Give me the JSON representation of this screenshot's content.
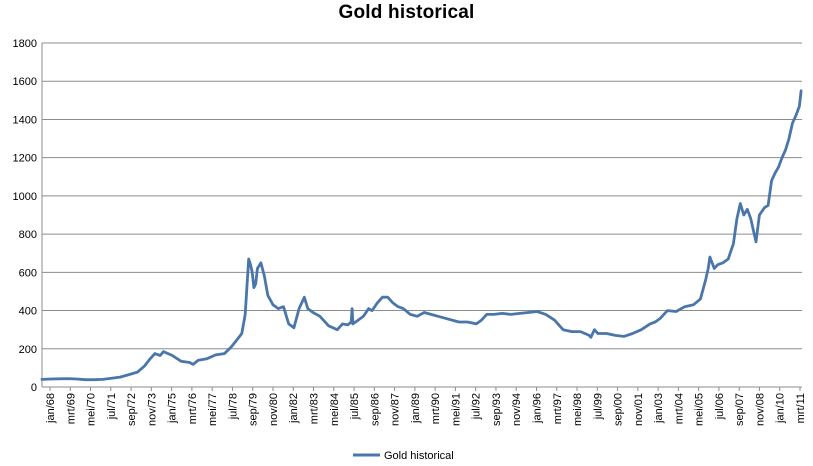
{
  "chart_data": {
    "type": "line",
    "title": "Gold historical",
    "xlabel": "",
    "ylabel": "",
    "ylim": [
      0,
      1800
    ],
    "yticks": [
      0,
      200,
      400,
      600,
      800,
      1000,
      1200,
      1400,
      1600,
      1800
    ],
    "grid": true,
    "legend_position": "bottom",
    "x_tick_labels": [
      "jan/68",
      "mrt/69",
      "mei/70",
      "jul/71",
      "sep/72",
      "nov/73",
      "jan/75",
      "mrt/76",
      "mei/77",
      "jul/78",
      "sep/79",
      "nov/80",
      "jan/82",
      "mrt/83",
      "mei/84",
      "jul/85",
      "sep/86",
      "nov/87",
      "jan/89",
      "mrt/90",
      "mei/91",
      "jul/92",
      "sep/93",
      "nov/94",
      "jan/96",
      "mrt/97",
      "mei/98",
      "jul/99",
      "sep/00",
      "nov/01",
      "jan/03",
      "mrt/04",
      "mei/05",
      "jul/06",
      "sep/07",
      "nov/08",
      "jan/10",
      "mrt/11"
    ],
    "series": [
      {
        "name": "Gold historical",
        "color": "#4a76ab",
        "x": [
          1968.0,
          1968.5,
          1969.0,
          1969.5,
          1970.0,
          1970.5,
          1971.0,
          1971.5,
          1972.0,
          1972.5,
          1973.0,
          1973.5,
          1973.9,
          1974.2,
          1974.5,
          1974.8,
          1975.0,
          1975.5,
          1976.0,
          1976.5,
          1976.7,
          1977.0,
          1977.5,
          1978.0,
          1978.5,
          1978.9,
          1979.2,
          1979.5,
          1979.7,
          1979.8,
          1979.9,
          1980.0,
          1980.1,
          1980.2,
          1980.3,
          1980.4,
          1980.6,
          1980.8,
          1981.0,
          1981.3,
          1981.6,
          1981.9,
          1982.2,
          1982.5,
          1982.8,
          1983.0,
          1983.1,
          1983.3,
          1983.6,
          1984.0,
          1984.5,
          1985.0,
          1985.3,
          1985.6,
          1985.8,
          1985.85,
          1985.9,
          1986.2,
          1986.5,
          1986.8,
          1987.0,
          1987.3,
          1987.6,
          1987.9,
          1988.2,
          1988.5,
          1988.8,
          1989.2,
          1989.6,
          1990.0,
          1990.4,
          1990.8,
          1991.2,
          1991.6,
          1992.0,
          1992.5,
          1993.0,
          1993.3,
          1993.6,
          1994.0,
          1994.5,
          1995.0,
          1995.5,
          1996.0,
          1996.5,
          1997.0,
          1997.5,
          1998.0,
          1998.5,
          1999.0,
          1999.5,
          1999.6,
          1999.8,
          2000.0,
          2000.5,
          2001.0,
          2001.5,
          2002.0,
          2002.5,
          2003.0,
          2003.3,
          2003.6,
          2004.0,
          2004.5,
          2005.0,
          2005.5,
          2005.9,
          2006.2,
          2006.35,
          2006.45,
          2006.7,
          2006.9,
          2007.2,
          2007.5,
          2007.8,
          2008.0,
          2008.2,
          2008.4,
          2008.6,
          2008.8,
          2008.9,
          2009.1,
          2009.3,
          2009.6,
          2009.8,
          2010.0,
          2010.2,
          2010.4,
          2010.6,
          2010.8,
          2011.0,
          2011.2,
          2011.4,
          2011.6,
          2011.7
        ],
        "values": [
          40,
          42,
          43,
          44,
          42,
          38,
          38,
          40,
          46,
          52,
          65,
          78,
          110,
          145,
          175,
          165,
          185,
          165,
          135,
          128,
          118,
          140,
          148,
          168,
          175,
          210,
          245,
          280,
          380,
          530,
          670,
          640,
          600,
          520,
          540,
          620,
          650,
          580,
          480,
          430,
          410,
          420,
          330,
          310,
          410,
          450,
          470,
          410,
          390,
          370,
          320,
          300,
          330,
          325,
          340,
          410,
          330,
          350,
          370,
          410,
          400,
          440,
          470,
          470,
          440,
          420,
          410,
          380,
          370,
          390,
          380,
          370,
          360,
          350,
          340,
          340,
          330,
          350,
          380,
          380,
          385,
          380,
          385,
          390,
          395,
          380,
          350,
          300,
          290,
          290,
          270,
          260,
          300,
          280,
          280,
          270,
          265,
          280,
          300,
          330,
          340,
          360,
          400,
          395,
          420,
          430,
          460,
          560,
          620,
          680,
          620,
          640,
          650,
          670,
          750,
          880,
          960,
          900,
          930,
          880,
          840,
          760,
          900,
          940,
          950,
          1080,
          1120,
          1150,
          1200,
          1240,
          1300,
          1380,
          1420,
          1470,
          1550
        ]
      }
    ]
  }
}
